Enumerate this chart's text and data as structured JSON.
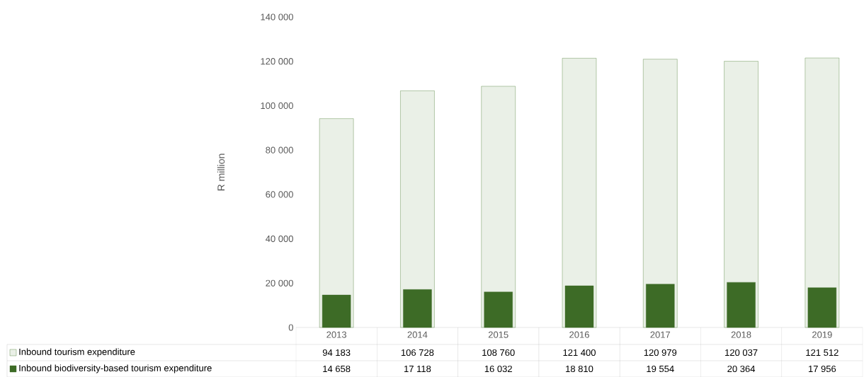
{
  "chart_data": {
    "type": "bar",
    "ylabel": "R million",
    "categories": [
      "2013",
      "2014",
      "2015",
      "2016",
      "2017",
      "2018",
      "2019"
    ],
    "series": [
      {
        "name": "Inbound tourism expenditure",
        "color": "#4f7f35",
        "values": [
          94183,
          106728,
          108760,
          121400,
          120979,
          120037,
          121512
        ],
        "value_labels": [
          "94 183",
          "106 728",
          "108 760",
          "121 400",
          "120 979",
          "120 037",
          "121 512"
        ]
      },
      {
        "name": "Inbound biodiversity-based tourism expenditure",
        "color": "#3d6b26",
        "values": [
          14658,
          17118,
          16032,
          18810,
          19554,
          20364,
          17956
        ],
        "value_labels": [
          "14 658",
          "17 118",
          "16 032",
          "18 810",
          "19 554",
          "20 364",
          "17 956"
        ]
      }
    ],
    "ylim": [
      0,
      140000
    ],
    "yticks": [
      0,
      {
        "value": 20000,
        "label": "20 000"
      },
      {
        "value": 40000,
        "label": "40 000"
      },
      {
        "value": 60000,
        "label": "60 000"
      },
      {
        "value": 80000,
        "label": "80 000"
      },
      {
        "value": 100000,
        "label": "100 000"
      },
      {
        "value": 120000,
        "label": "120 000"
      },
      {
        "value": 140000,
        "label": "140 000"
      }
    ],
    "grid": false,
    "legend": "bottom left"
  }
}
